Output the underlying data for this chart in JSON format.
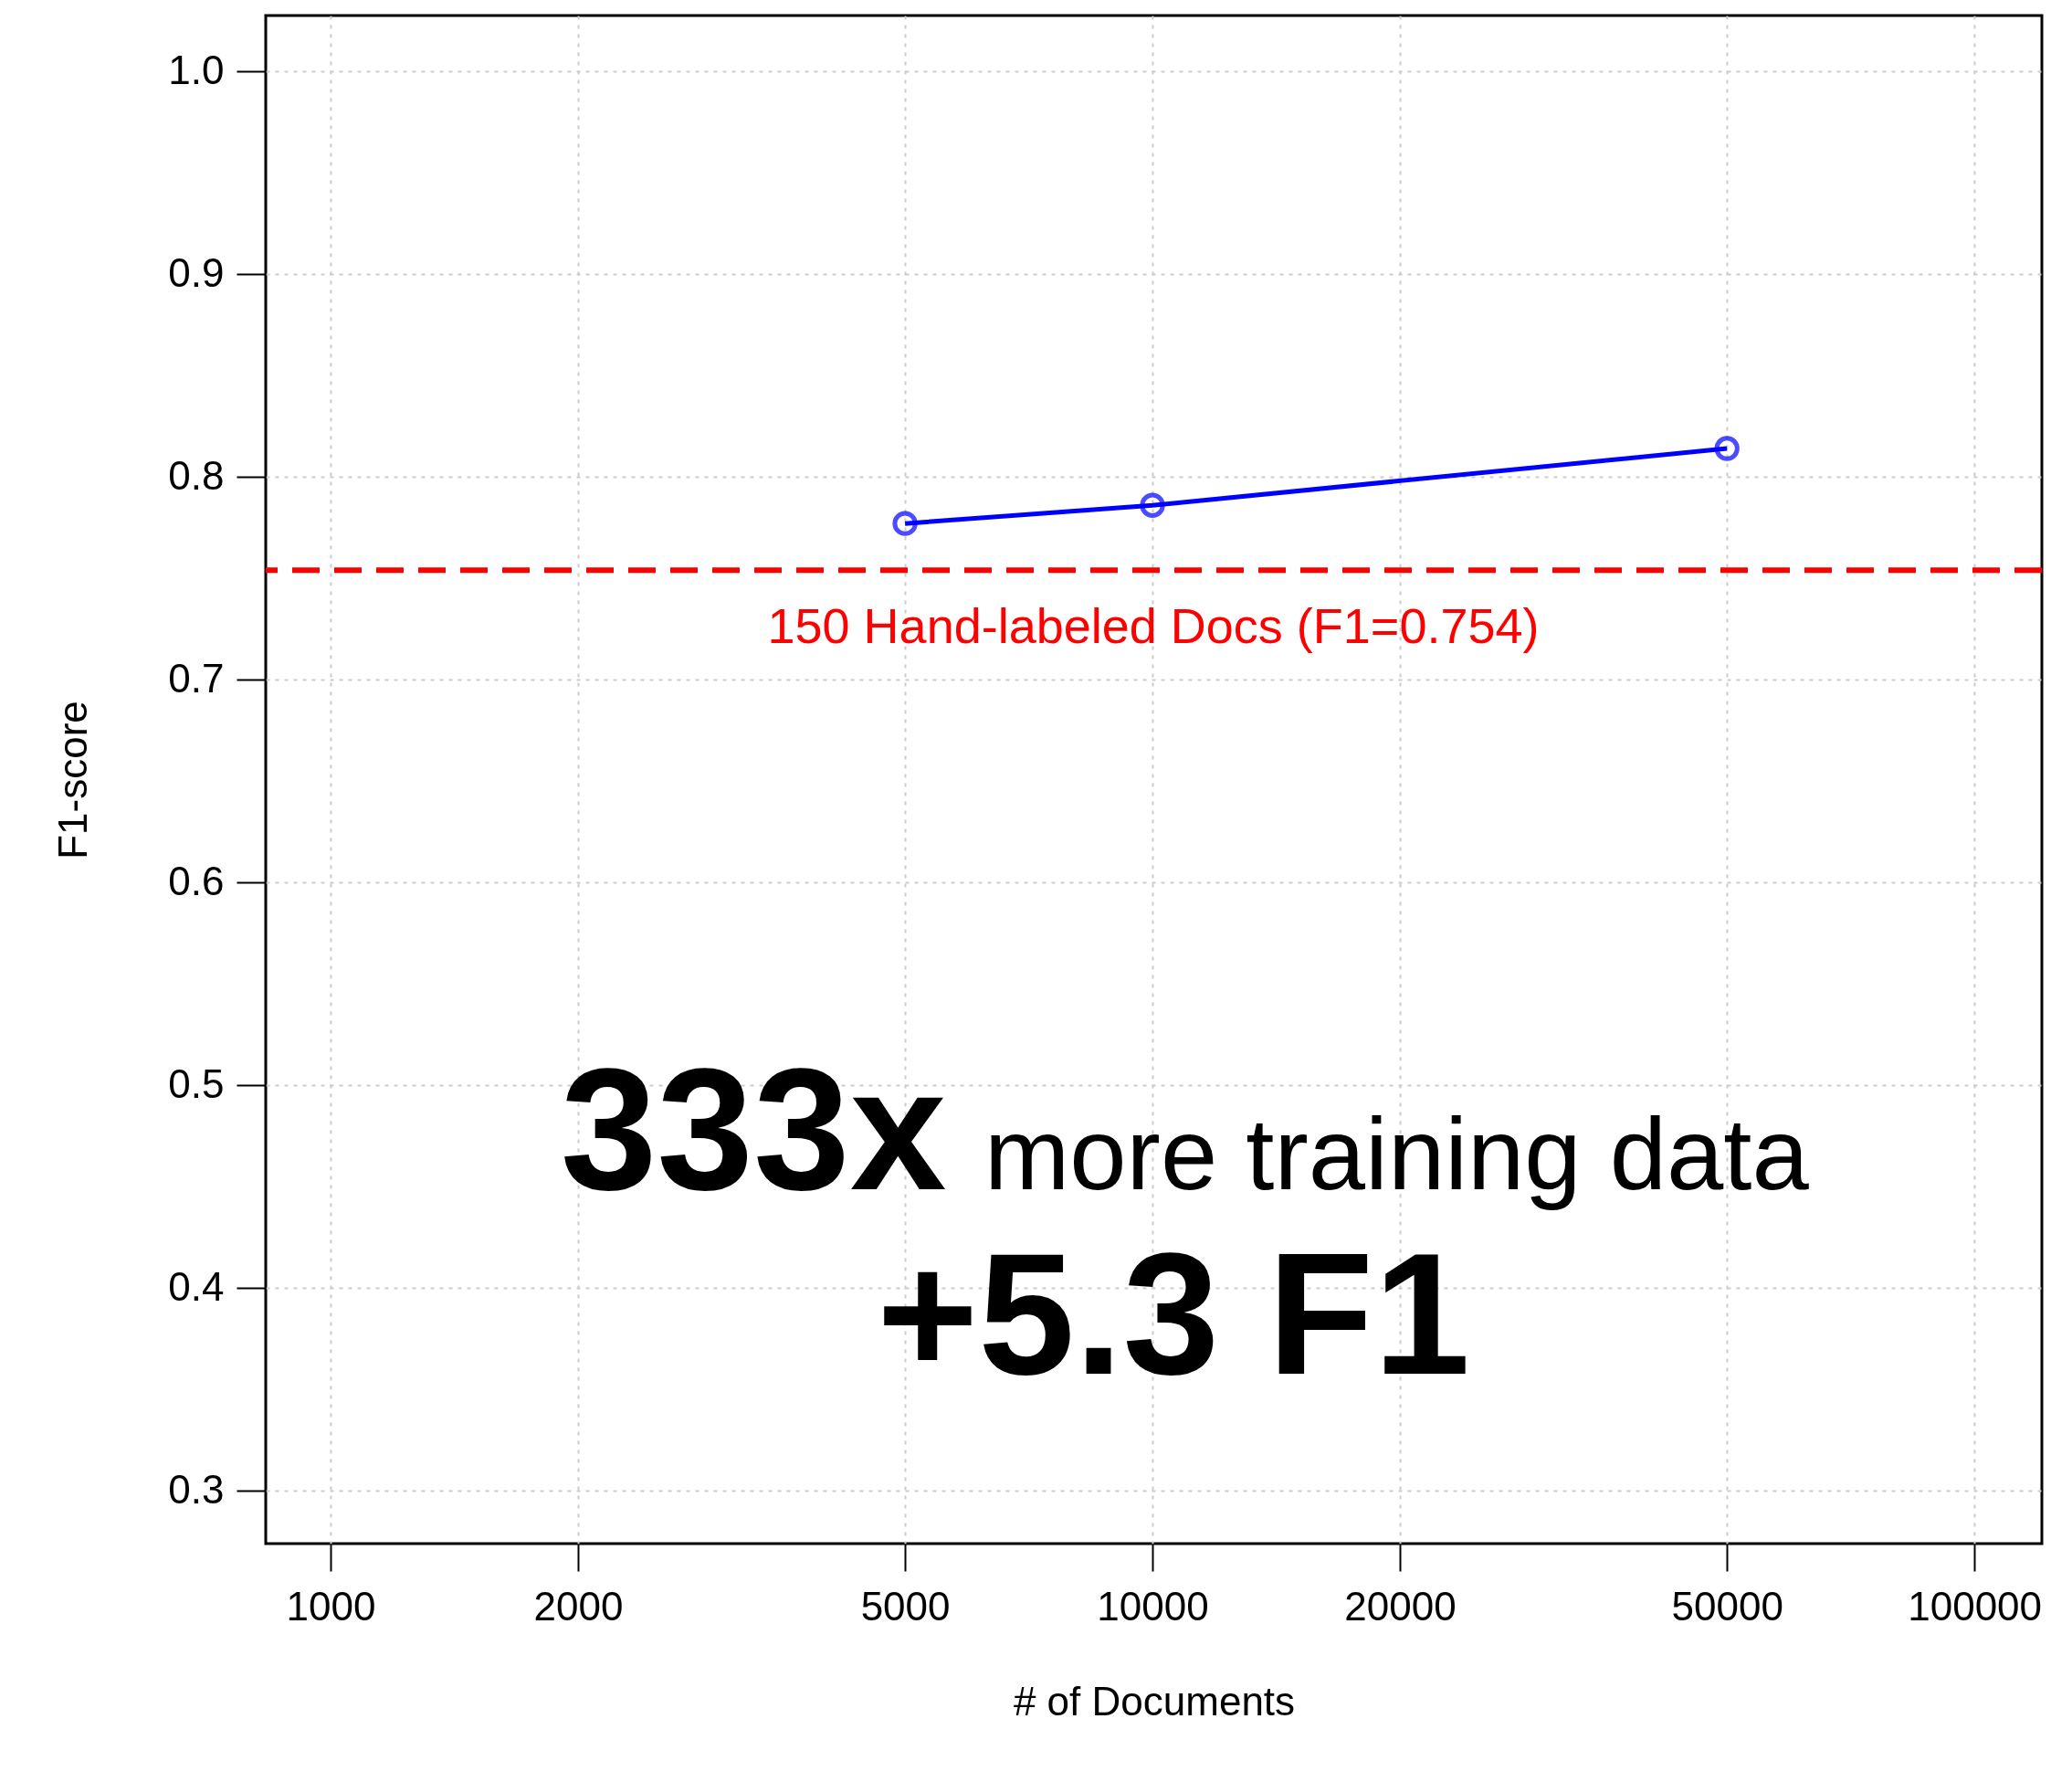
{
  "chart_data": {
    "type": "line",
    "xlabel": "# of Documents",
    "ylabel": "F1-score",
    "x": [
      5000,
      10000,
      50000
    ],
    "series": [
      {
        "color": "#0000ff",
        "values": [
          0.777,
          0.786,
          0.814
        ]
      }
    ],
    "xlim": [
      834,
      120800
    ],
    "xticks": [
      1000,
      2000,
      5000,
      10000,
      20000,
      50000,
      100000
    ],
    "ylim": [
      0.274,
      1.0275
    ],
    "yticks": [
      0.3,
      0.4,
      0.5,
      0.6,
      0.7,
      0.8,
      0.9,
      {
        "value": 1,
        "label": "1.0"
      }
    ],
    "log": "x",
    "grid": true,
    "marker": "circle",
    "line_style": "solid",
    "ref_lines": [
      {
        "axis": "y",
        "value": 0.754,
        "label": "150 Hand-labeled Docs (F1=0.754)",
        "color": "#ff0000",
        "line_style": "dashed"
      }
    ],
    "annotations": [
      "333x",
      "more training data",
      "+5.3 F1"
    ]
  }
}
